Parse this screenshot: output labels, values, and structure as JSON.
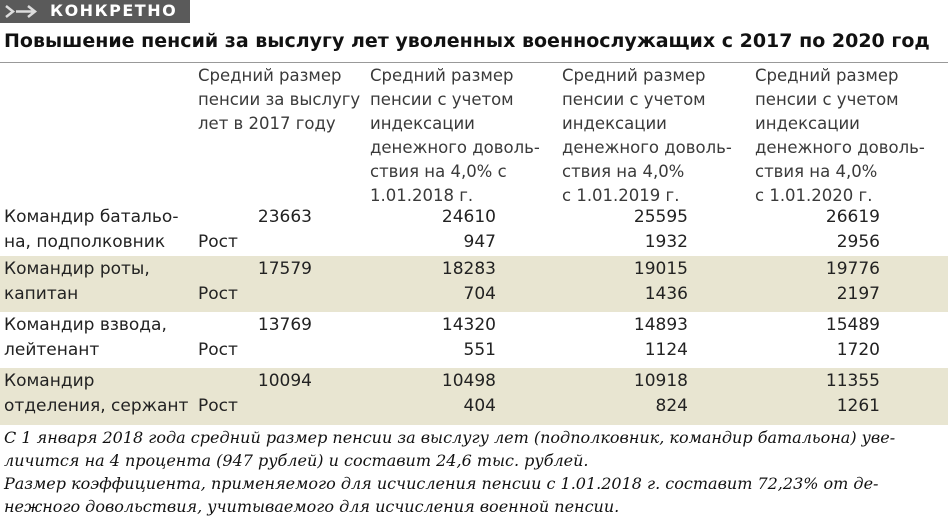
{
  "header": {
    "tag": "КОНКРЕТНО",
    "title": "Повышение пенсий за выслугу лет уволенных военнослужащих с 2017 по 2020 год"
  },
  "table": {
    "columns": [
      [
        "Средний размер",
        "пенсии за выслугу",
        "лет в 2017 году"
      ],
      [
        "Средний размер",
        "пенсии с учетом",
        "индексации",
        "денежного доволь-",
        "ствия на 4,0% с",
        "1.01.2018 г."
      ],
      [
        "Средний размер",
        "пенсии с учетом",
        "индексации",
        "денежного доволь-",
        "ствия на 4,0%",
        "с 1.01.2019 г."
      ],
      [
        "Средний размер",
        "пенсии с учетом",
        "индексации",
        "денежного доволь-",
        "ствия на 4,0%",
        "с 1.01.2020 г."
      ]
    ],
    "rows": [
      {
        "label": [
          "Командир батальо-",
          "на, подполковник"
        ],
        "growth_label": "Рост",
        "values": [
          23663,
          24610,
          25595,
          26619
        ],
        "growth": [
          947,
          1932,
          2956
        ]
      },
      {
        "label": [
          "Командир роты,",
          "капитан"
        ],
        "growth_label": "Рост",
        "values": [
          17579,
          18283,
          19015,
          19776
        ],
        "growth": [
          704,
          1436,
          2197
        ]
      },
      {
        "label": [
          "Командир взвода,",
          "лейтенант"
        ],
        "growth_label": "Рост",
        "values": [
          13769,
          14320,
          14893,
          15489
        ],
        "growth": [
          551,
          1124,
          1720
        ]
      },
      {
        "label": [
          "Командир",
          "отделения, сержант"
        ],
        "growth_label": "Рост",
        "values": [
          10094,
          10498,
          10918,
          11355
        ],
        "growth": [
          404,
          824,
          1261
        ]
      }
    ]
  },
  "footnote": [
    "С 1 января 2018 года средний размер пенсии за выслугу лет (подполковник, командир батальона) уве-",
    "личится на 4 процента (947 рублей) и составит 24,6 тыс. рублей.",
    "Размер коэффициента, применяемого для исчисления пенсии с 1.01.2018 г. составит 72,23% от де-",
    "нежного довольствия, учитываемого для исчисления военной пенсии."
  ]
}
